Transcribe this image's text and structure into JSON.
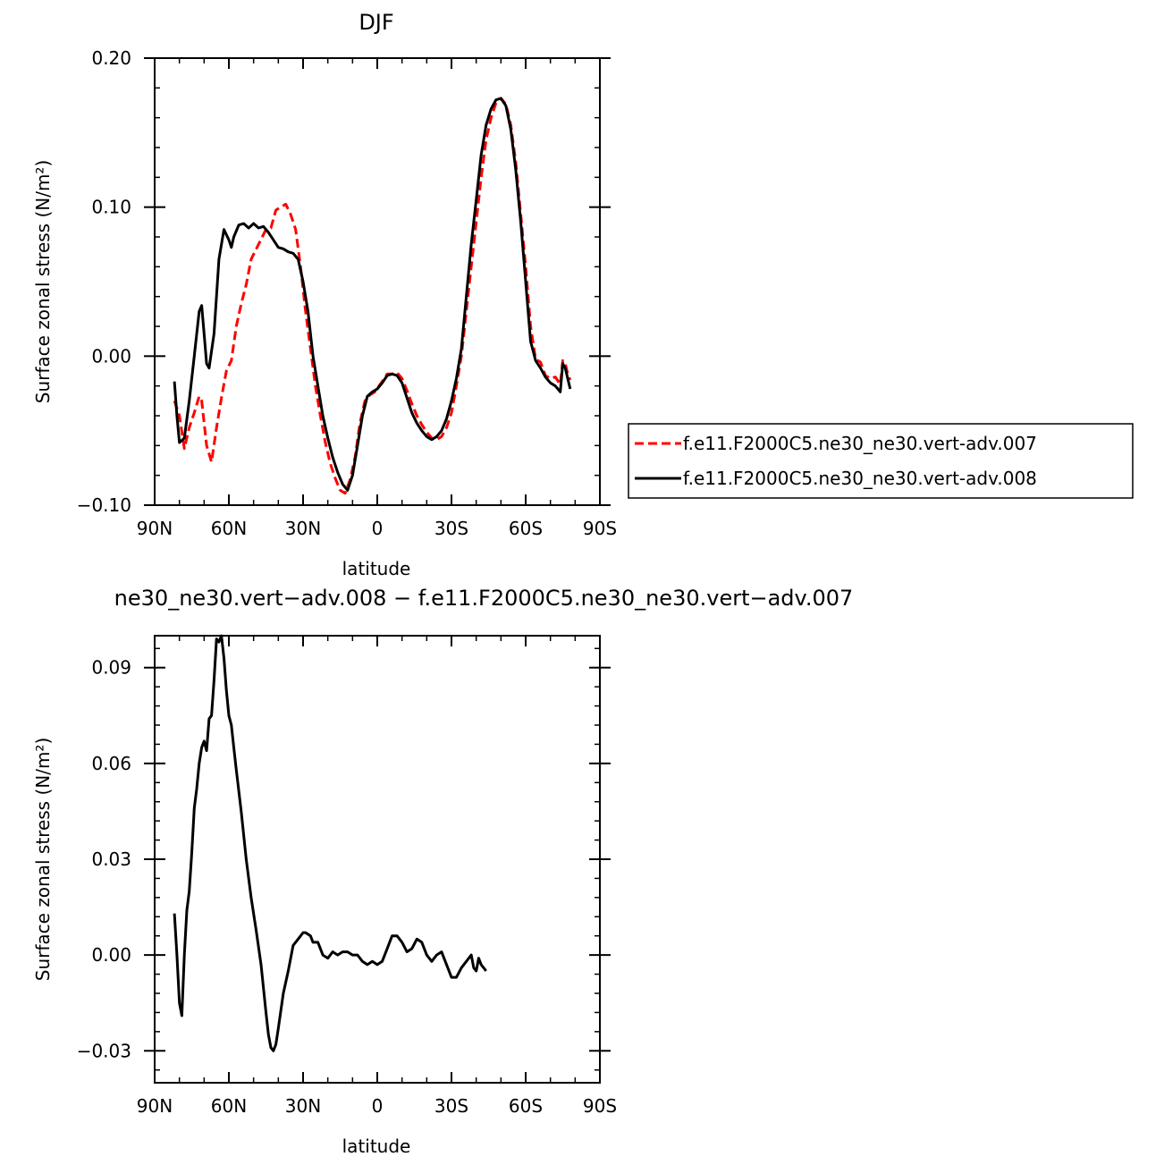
{
  "chart_data": [
    {
      "type": "line",
      "title": "DJF",
      "xlabel": "latitude",
      "ylabel": "Surface zonal stress (N/m²)",
      "xlim": [
        -90,
        90
      ],
      "ylim": [
        -0.1,
        0.2
      ],
      "xticks": [
        {
          "v": -90,
          "label": "90N"
        },
        {
          "v": -60,
          "label": "60N"
        },
        {
          "v": -30,
          "label": "30N"
        },
        {
          "v": 0,
          "label": "0"
        },
        {
          "v": 30,
          "label": "30S"
        },
        {
          "v": 60,
          "label": "60S"
        },
        {
          "v": 90,
          "label": "90S"
        }
      ],
      "yticks": [
        {
          "v": -0.1,
          "label": "−0.10"
        },
        {
          "v": 0.0,
          "label": "0.00"
        },
        {
          "v": 0.1,
          "label": "0.10"
        },
        {
          "v": 0.2,
          "label": "0.20"
        }
      ],
      "legend_position": "right",
      "series": [
        {
          "name": "f.e11.F2000C5.ne30_ne30.vert-adv.007",
          "color": "#ff0000",
          "dashed": true,
          "points": [
            [
              -82,
              -0.03
            ],
            [
              -80,
              -0.04
            ],
            [
              -78,
              -0.062
            ],
            [
              -76,
              -0.048
            ],
            [
              -74,
              -0.038
            ],
            [
              -72,
              -0.027
            ],
            [
              -71,
              -0.03
            ],
            [
              -69,
              -0.06
            ],
            [
              -67,
              -0.071
            ],
            [
              -65,
              -0.048
            ],
            [
              -63,
              -0.028
            ],
            [
              -61,
              -0.01
            ],
            [
              -59,
              -0.003
            ],
            [
              -57,
              0.02
            ],
            [
              -55,
              0.035
            ],
            [
              -53,
              0.048
            ],
            [
              -51,
              0.065
            ],
            [
              -48,
              0.075
            ],
            [
              -45,
              0.085
            ],
            [
              -43,
              0.086
            ],
            [
              -41,
              0.098
            ],
            [
              -39,
              0.1
            ],
            [
              -37,
              0.102
            ],
            [
              -35,
              0.095
            ],
            [
              -33,
              0.085
            ],
            [
              -31,
              0.06
            ],
            [
              -29,
              0.03
            ],
            [
              -27,
              0.005
            ],
            [
              -25,
              -0.02
            ],
            [
              -23,
              -0.04
            ],
            [
              -21,
              -0.058
            ],
            [
              -19,
              -0.072
            ],
            [
              -17,
              -0.082
            ],
            [
              -15,
              -0.09
            ],
            [
              -13,
              -0.092
            ],
            [
              -11,
              -0.083
            ],
            [
              -9,
              -0.068
            ],
            [
              -7,
              -0.045
            ],
            [
              -5,
              -0.03
            ],
            [
              -3,
              -0.026
            ],
            [
              -1,
              -0.024
            ],
            [
              2,
              -0.017
            ],
            [
              4,
              -0.012
            ],
            [
              6,
              -0.012
            ],
            [
              8,
              -0.011
            ],
            [
              10,
              -0.015
            ],
            [
              12,
              -0.023
            ],
            [
              14,
              -0.032
            ],
            [
              16,
              -0.04
            ],
            [
              18,
              -0.046
            ],
            [
              20,
              -0.051
            ],
            [
              22,
              -0.055
            ],
            [
              24,
              -0.056
            ],
            [
              26,
              -0.054
            ],
            [
              28,
              -0.048
            ],
            [
              30,
              -0.038
            ],
            [
              32,
              -0.02
            ],
            [
              34,
              0.0
            ],
            [
              36,
              0.03
            ],
            [
              38,
              0.06
            ],
            [
              40,
              0.09
            ],
            [
              42,
              0.12
            ],
            [
              44,
              0.145
            ],
            [
              46,
              0.16
            ],
            [
              48,
              0.17
            ],
            [
              50,
              0.173
            ],
            [
              52,
              0.169
            ],
            [
              54,
              0.155
            ],
            [
              56,
              0.13
            ],
            [
              58,
              0.095
            ],
            [
              60,
              0.06
            ],
            [
              62,
              0.02
            ],
            [
              64,
              -0.002
            ],
            [
              66,
              -0.004
            ],
            [
              68,
              -0.013
            ],
            [
              70,
              -0.015
            ],
            [
              72,
              -0.014
            ],
            [
              74,
              -0.019
            ],
            [
              75,
              -0.003
            ],
            [
              76,
              -0.005
            ],
            [
              77,
              -0.012
            ],
            [
              78,
              -0.016
            ]
          ]
        },
        {
          "name": "f.e11.F2000C5.ne30_ne30.vert-adv.008",
          "color": "#000000",
          "dashed": false,
          "points": [
            [
              -82,
              -0.017
            ],
            [
              -81,
              -0.04
            ],
            [
              -80,
              -0.058
            ],
            [
              -78,
              -0.055
            ],
            [
              -76,
              -0.03
            ],
            [
              -74,
              0.0
            ],
            [
              -72,
              0.03
            ],
            [
              -71,
              0.034
            ],
            [
              -70,
              0.015
            ],
            [
              -69,
              -0.005
            ],
            [
              -68,
              -0.008
            ],
            [
              -66,
              0.015
            ],
            [
              -64,
              0.065
            ],
            [
              -62,
              0.085
            ],
            [
              -60,
              0.078
            ],
            [
              -59,
              0.073
            ],
            [
              -58,
              0.08
            ],
            [
              -56,
              0.088
            ],
            [
              -54,
              0.089
            ],
            [
              -52,
              0.086
            ],
            [
              -50,
              0.089
            ],
            [
              -48,
              0.086
            ],
            [
              -46,
              0.087
            ],
            [
              -44,
              0.083
            ],
            [
              -42,
              0.078
            ],
            [
              -40,
              0.073
            ],
            [
              -38,
              0.072
            ],
            [
              -36,
              0.07
            ],
            [
              -34,
              0.069
            ],
            [
              -32,
              0.065
            ],
            [
              -30,
              0.05
            ],
            [
              -28,
              0.03
            ],
            [
              -26,
              0.0
            ],
            [
              -24,
              -0.02
            ],
            [
              -22,
              -0.04
            ],
            [
              -20,
              -0.055
            ],
            [
              -18,
              -0.068
            ],
            [
              -16,
              -0.078
            ],
            [
              -14,
              -0.086
            ],
            [
              -12,
              -0.09
            ],
            [
              -10,
              -0.08
            ],
            [
              -8,
              -0.06
            ],
            [
              -6,
              -0.04
            ],
            [
              -4,
              -0.027
            ],
            [
              -2,
              -0.024
            ],
            [
              0,
              -0.022
            ],
            [
              2,
              -0.018
            ],
            [
              4,
              -0.013
            ],
            [
              6,
              -0.012
            ],
            [
              8,
              -0.013
            ],
            [
              10,
              -0.018
            ],
            [
              12,
              -0.028
            ],
            [
              14,
              -0.038
            ],
            [
              16,
              -0.045
            ],
            [
              18,
              -0.05
            ],
            [
              20,
              -0.054
            ],
            [
              22,
              -0.056
            ],
            [
              24,
              -0.054
            ],
            [
              26,
              -0.05
            ],
            [
              28,
              -0.042
            ],
            [
              30,
              -0.03
            ],
            [
              32,
              -0.015
            ],
            [
              34,
              0.005
            ],
            [
              36,
              0.04
            ],
            [
              38,
              0.075
            ],
            [
              40,
              0.105
            ],
            [
              42,
              0.135
            ],
            [
              44,
              0.155
            ],
            [
              46,
              0.166
            ],
            [
              48,
              0.172
            ],
            [
              50,
              0.173
            ],
            [
              52,
              0.168
            ],
            [
              54,
              0.152
            ],
            [
              56,
              0.125
            ],
            [
              58,
              0.09
            ],
            [
              60,
              0.05
            ],
            [
              62,
              0.01
            ],
            [
              64,
              -0.003
            ],
            [
              66,
              -0.008
            ],
            [
              68,
              -0.014
            ],
            [
              70,
              -0.018
            ],
            [
              72,
              -0.02
            ],
            [
              74,
              -0.024
            ],
            [
              75,
              -0.005
            ],
            [
              76,
              -0.008
            ],
            [
              77,
              -0.015
            ],
            [
              78,
              -0.022
            ]
          ]
        }
      ]
    },
    {
      "type": "line",
      "title": "ne30_ne30.vert−adv.008 − f.e11.F2000C5.ne30_ne30.vert−adv.007",
      "xlabel": "latitude",
      "ylabel": "Surface zonal stress (N/m²)",
      "xlim": [
        -90,
        90
      ],
      "ylim": [
        -0.04,
        0.1
      ],
      "xticks": [
        {
          "v": -90,
          "label": "90N"
        },
        {
          "v": -60,
          "label": "60N"
        },
        {
          "v": -30,
          "label": "30N"
        },
        {
          "v": 0,
          "label": "0"
        },
        {
          "v": 30,
          "label": "30S"
        },
        {
          "v": 60,
          "label": "60S"
        },
        {
          "v": 90,
          "label": "90S"
        }
      ],
      "yticks": [
        {
          "v": -0.03,
          "label": "−0.03"
        },
        {
          "v": 0.0,
          "label": "0.00"
        },
        {
          "v": 0.03,
          "label": "0.03"
        },
        {
          "v": 0.06,
          "label": "0.06"
        },
        {
          "v": 0.09,
          "label": "0.09"
        }
      ],
      "series": [
        {
          "color": "#000000",
          "dashed": false,
          "points": [
            [
              -82,
              0.013
            ],
            [
              -81,
              0.0
            ],
            [
              -80,
              -0.015
            ],
            [
              -79,
              -0.019
            ],
            [
              -78,
              0.0
            ],
            [
              -77,
              0.014
            ],
            [
              -76,
              0.02
            ],
            [
              -75,
              0.032
            ],
            [
              -74,
              0.046
            ],
            [
              -73,
              0.052
            ],
            [
              -72,
              0.06
            ],
            [
              -71,
              0.065
            ],
            [
              -70,
              0.067
            ],
            [
              -69,
              0.064
            ],
            [
              -68,
              0.074
            ],
            [
              -67,
              0.075
            ],
            [
              -66,
              0.086
            ],
            [
              -65,
              0.099
            ],
            [
              -64,
              0.098
            ],
            [
              -63,
              0.1
            ],
            [
              -62,
              0.093
            ],
            [
              -61,
              0.083
            ],
            [
              -60,
              0.075
            ],
            [
              -59,
              0.072
            ],
            [
              -58,
              0.065
            ],
            [
              -57,
              0.058
            ],
            [
              -55,
              0.045
            ],
            [
              -53,
              0.03
            ],
            [
              -51,
              0.018
            ],
            [
              -49,
              0.008
            ],
            [
              -47,
              -0.003
            ],
            [
              -45,
              -0.018
            ],
            [
              -44,
              -0.025
            ],
            [
              -43,
              -0.029
            ],
            [
              -42,
              -0.03
            ],
            [
              -41,
              -0.028
            ],
            [
              -40,
              -0.023
            ],
            [
              -38,
              -0.012
            ],
            [
              -36,
              -0.005
            ],
            [
              -34,
              0.003
            ],
            [
              -32,
              0.005
            ],
            [
              -30,
              0.007
            ],
            [
              -29,
              0.007
            ],
            [
              -27,
              0.006
            ],
            [
              -26,
              0.004
            ],
            [
              -24,
              0.004
            ],
            [
              -22,
              0.0
            ],
            [
              -20,
              -0.001
            ],
            [
              -18,
              0.001
            ],
            [
              -16,
              0.0
            ],
            [
              -14,
              0.001
            ],
            [
              -12,
              0.001
            ],
            [
              -10,
              0.0
            ],
            [
              -8,
              0.0
            ],
            [
              -6,
              -0.002
            ],
            [
              -4,
              -0.003
            ],
            [
              -2,
              -0.002
            ],
            [
              0,
              -0.003
            ],
            [
              2,
              -0.002
            ],
            [
              4,
              0.002
            ],
            [
              6,
              0.006
            ],
            [
              8,
              0.006
            ],
            [
              10,
              0.004
            ],
            [
              12,
              0.001
            ],
            [
              14,
              0.002
            ],
            [
              16,
              0.005
            ],
            [
              18,
              0.004
            ],
            [
              20,
              0.0
            ],
            [
              22,
              -0.002
            ],
            [
              24,
              0.0
            ],
            [
              26,
              0.001
            ],
            [
              28,
              -0.003
            ],
            [
              30,
              -0.007
            ],
            [
              32,
              -0.007
            ],
            [
              34,
              -0.004
            ],
            [
              36,
              -0.002
            ],
            [
              38,
              0.0
            ],
            [
              39,
              -0.004
            ],
            [
              40,
              -0.005
            ],
            [
              41,
              -0.001
            ],
            [
              42,
              -0.003
            ],
            [
              43,
              -0.004
            ],
            [
              44,
              -0.005
            ]
          ]
        }
      ]
    }
  ]
}
